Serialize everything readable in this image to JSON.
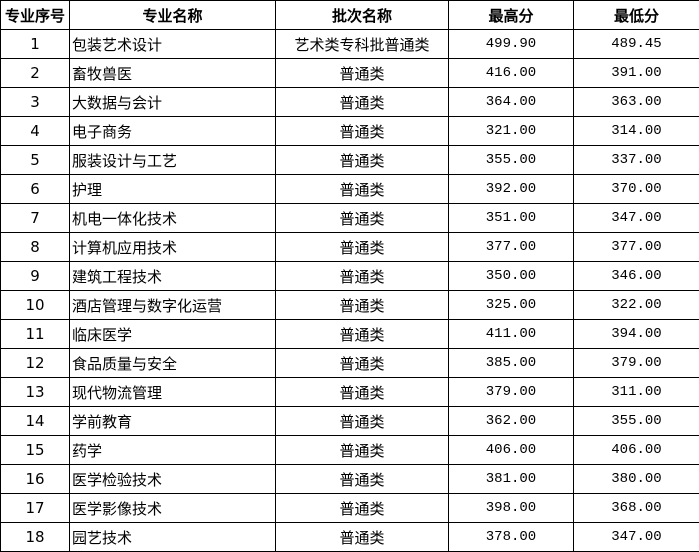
{
  "headers": [
    "专业序号",
    "专业名称",
    "批次名称",
    "最高分",
    "最低分"
  ],
  "rows": [
    {
      "no": "1",
      "major": "包装艺术设计",
      "batch": "艺术类专科批普通类",
      "max": "499.90",
      "min": "489.45"
    },
    {
      "no": "2",
      "major": "畜牧兽医",
      "batch": "普通类",
      "max": "416.00",
      "min": "391.00"
    },
    {
      "no": "3",
      "major": "大数据与会计",
      "batch": "普通类",
      "max": "364.00",
      "min": "363.00"
    },
    {
      "no": "4",
      "major": "电子商务",
      "batch": "普通类",
      "max": "321.00",
      "min": "314.00"
    },
    {
      "no": "5",
      "major": "服装设计与工艺",
      "batch": "普通类",
      "max": "355.00",
      "min": "337.00"
    },
    {
      "no": "6",
      "major": "护理",
      "batch": "普通类",
      "max": "392.00",
      "min": "370.00"
    },
    {
      "no": "7",
      "major": "机电一体化技术",
      "batch": "普通类",
      "max": "351.00",
      "min": "347.00"
    },
    {
      "no": "8",
      "major": "计算机应用技术",
      "batch": "普通类",
      "max": "377.00",
      "min": "377.00"
    },
    {
      "no": "9",
      "major": "建筑工程技术",
      "batch": "普通类",
      "max": "350.00",
      "min": "346.00"
    },
    {
      "no": "10",
      "major": "酒店管理与数字化运营",
      "batch": "普通类",
      "max": "325.00",
      "min": "322.00"
    },
    {
      "no": "11",
      "major": "临床医学",
      "batch": "普通类",
      "max": "411.00",
      "min": "394.00"
    },
    {
      "no": "12",
      "major": "食品质量与安全",
      "batch": "普通类",
      "max": "385.00",
      "min": "379.00"
    },
    {
      "no": "13",
      "major": "现代物流管理",
      "batch": "普通类",
      "max": "379.00",
      "min": "311.00"
    },
    {
      "no": "14",
      "major": "学前教育",
      "batch": "普通类",
      "max": "362.00",
      "min": "355.00"
    },
    {
      "no": "15",
      "major": "药学",
      "batch": "普通类",
      "max": "406.00",
      "min": "406.00"
    },
    {
      "no": "16",
      "major": "医学检验技术",
      "batch": "普通类",
      "max": "381.00",
      "min": "380.00"
    },
    {
      "no": "17",
      "major": "医学影像技术",
      "batch": "普通类",
      "max": "398.00",
      "min": "368.00"
    },
    {
      "no": "18",
      "major": "园艺技术",
      "batch": "普通类",
      "max": "378.00",
      "min": "347.00"
    }
  ]
}
